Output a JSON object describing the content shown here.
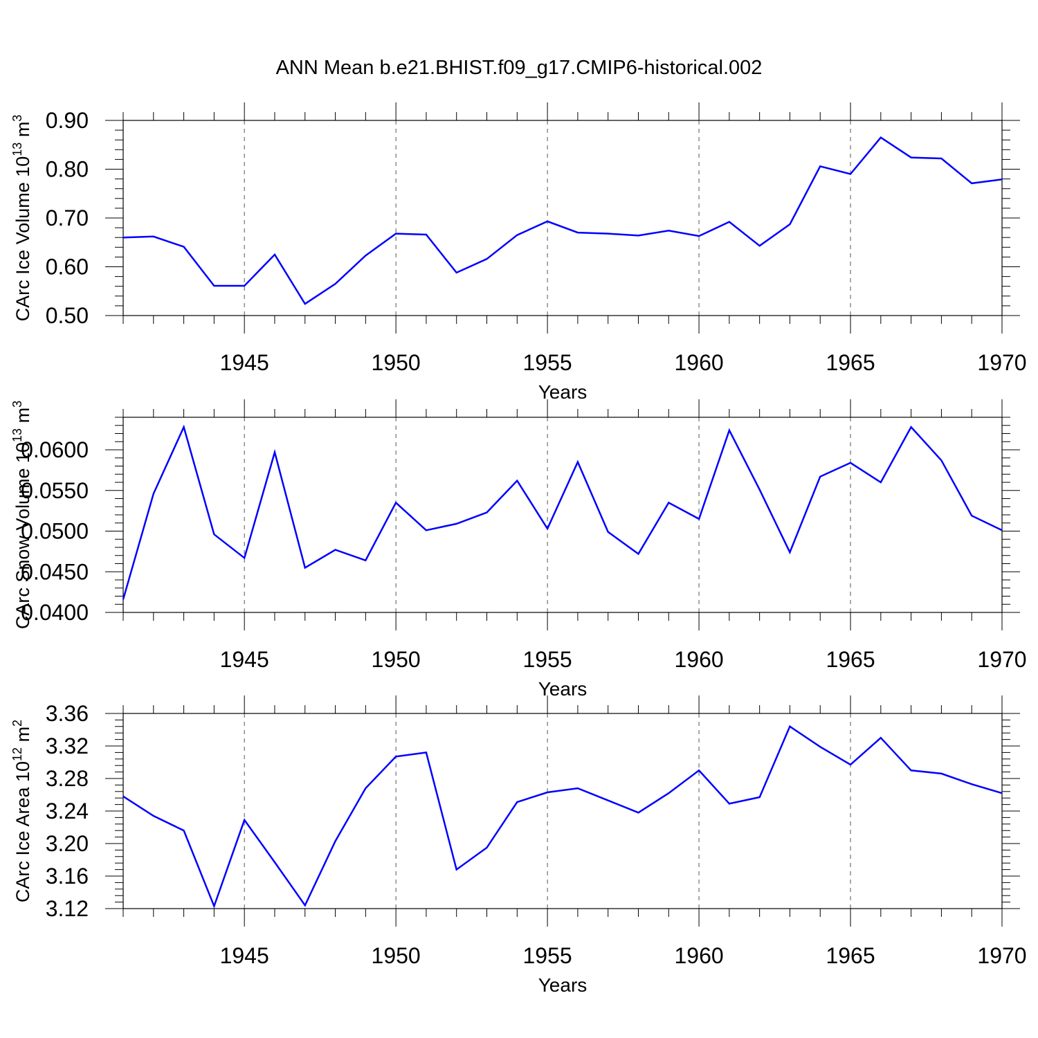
{
  "title": "ANN Mean b.e21.BHIST.f09_g17.CMIP6-historical.002",
  "chart_data": [
    {
      "type": "line",
      "ylabel": "CArc Ice Volume 10",
      "ylabel_sup": "13",
      "ylabel_unit": " m",
      "ylabel_unit_sup": "3",
      "xlabel": "Years",
      "xlim": [
        1941,
        1970
      ],
      "ylim": [
        0.5,
        0.9
      ],
      "yticks": [
        0.5,
        0.6,
        0.7,
        0.8,
        0.9
      ],
      "ytick_labels": [
        "0.50",
        "0.60",
        "0.70",
        "0.80",
        "0.90"
      ],
      "xticks": [
        1945,
        1950,
        1955,
        1960,
        1965,
        1970
      ],
      "xtick_labels": [
        "1945",
        "1950",
        "1955",
        "1960",
        "1965",
        "1970"
      ],
      "line_color": "#0000ff",
      "x": [
        1941,
        1942,
        1943,
        1944,
        1945,
        1946,
        1947,
        1948,
        1949,
        1950,
        1951,
        1952,
        1953,
        1954,
        1955,
        1956,
        1957,
        1958,
        1959,
        1960,
        1961,
        1962,
        1963,
        1964,
        1965,
        1966,
        1967,
        1968,
        1969,
        1970
      ],
      "values": [
        0.66,
        0.662,
        0.641,
        0.561,
        0.561,
        0.625,
        0.524,
        0.565,
        0.623,
        0.668,
        0.666,
        0.588,
        0.616,
        0.665,
        0.693,
        0.67,
        0.668,
        0.664,
        0.674,
        0.663,
        0.692,
        0.643,
        0.687,
        0.806,
        0.79,
        0.865,
        0.824,
        0.822,
        0.771,
        0.779
      ]
    },
    {
      "type": "line",
      "ylabel": "CArc Snow Volume 10",
      "ylabel_sup": "13",
      "ylabel_unit": " m",
      "ylabel_unit_sup": "3",
      "xlabel": "Years",
      "xlim": [
        1941,
        1970
      ],
      "ylim": [
        0.04,
        0.064
      ],
      "yticks": [
        0.04,
        0.045,
        0.05,
        0.055,
        0.06
      ],
      "ytick_labels": [
        "0.0400",
        "0.0450",
        "0.0500",
        "0.0550",
        "0.0600"
      ],
      "xticks": [
        1945,
        1950,
        1955,
        1960,
        1965,
        1970
      ],
      "xtick_labels": [
        "1945",
        "1950",
        "1955",
        "1960",
        "1965",
        "1970"
      ],
      "line_color": "#0000ff",
      "x": [
        1941,
        1942,
        1943,
        1944,
        1945,
        1946,
        1947,
        1948,
        1949,
        1950,
        1951,
        1952,
        1953,
        1954,
        1955,
        1956,
        1957,
        1958,
        1959,
        1960,
        1961,
        1962,
        1963,
        1964,
        1965,
        1966,
        1967,
        1968,
        1969,
        1970
      ],
      "values": [
        0.0416,
        0.0546,
        0.0628,
        0.0496,
        0.0467,
        0.0597,
        0.0455,
        0.0477,
        0.0464,
        0.0535,
        0.0501,
        0.0509,
        0.0523,
        0.0562,
        0.0503,
        0.0585,
        0.0499,
        0.0472,
        0.0535,
        0.0515,
        0.0624,
        0.0551,
        0.0474,
        0.0567,
        0.0584,
        0.056,
        0.0628,
        0.0587,
        0.0519,
        0.0501
      ]
    },
    {
      "type": "line",
      "ylabel": "CArc Ice Area 10",
      "ylabel_sup": "12",
      "ylabel_unit": " m",
      "ylabel_unit_sup": "2",
      "xlabel": "Years",
      "xlim": [
        1941,
        1970
      ],
      "ylim": [
        3.12,
        3.36
      ],
      "yticks": [
        3.12,
        3.16,
        3.2,
        3.24,
        3.28,
        3.32,
        3.36
      ],
      "ytick_labels": [
        "3.12",
        "3.16",
        "3.20",
        "3.24",
        "3.28",
        "3.32",
        "3.36"
      ],
      "xticks": [
        1945,
        1950,
        1955,
        1960,
        1965,
        1970
      ],
      "xtick_labels": [
        "1945",
        "1950",
        "1955",
        "1960",
        "1965",
        "1970"
      ],
      "line_color": "#0000ff",
      "x": [
        1941,
        1942,
        1943,
        1944,
        1945,
        1946,
        1947,
        1948,
        1949,
        1950,
        1951,
        1952,
        1953,
        1954,
        1955,
        1956,
        1957,
        1958,
        1959,
        1960,
        1961,
        1962,
        1963,
        1964,
        1965,
        1966,
        1967,
        1968,
        1969,
        1970
      ],
      "values": [
        3.258,
        3.234,
        3.216,
        3.123,
        3.229,
        3.177,
        3.124,
        3.203,
        3.268,
        3.307,
        3.312,
        3.168,
        3.195,
        3.251,
        3.263,
        3.268,
        3.253,
        3.238,
        3.262,
        3.29,
        3.249,
        3.257,
        3.344,
        3.319,
        3.297,
        3.33,
        3.29,
        3.286,
        3.273,
        3.262
      ]
    }
  ]
}
